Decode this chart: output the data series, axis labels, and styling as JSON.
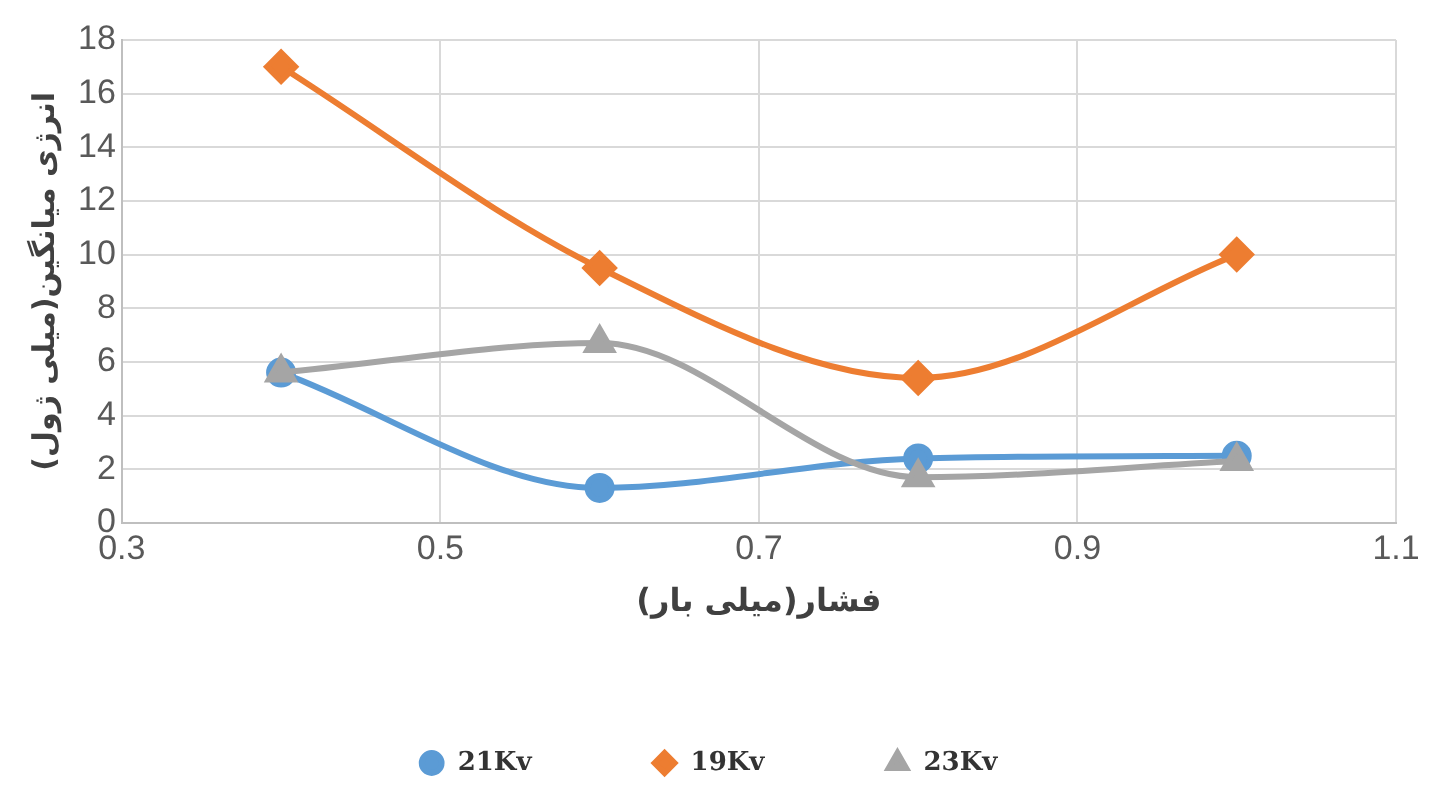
{
  "chart_data": {
    "type": "line",
    "xlabel": "فشار(میلی بار)",
    "ylabel": "انرژی میانگین(میلی ژول)",
    "x": [
      0.4,
      0.6,
      0.8,
      1.0
    ],
    "xlim": [
      0.3,
      1.1
    ],
    "xticks": [
      0.3,
      0.5,
      0.7,
      0.9,
      1.1
    ],
    "ylim": [
      0,
      18
    ],
    "yticks": [
      0,
      2,
      4,
      6,
      8,
      10,
      12,
      14,
      16,
      18
    ],
    "grid": true,
    "legend": "bottom",
    "line_style": "solid",
    "series": [
      {
        "name": "21Kv",
        "color": "#5b9bd5",
        "marker": "circle",
        "values": [
          5.6,
          1.3,
          2.4,
          2.5
        ]
      },
      {
        "name": "19Kv",
        "color": "#ed7d31",
        "marker": "diamond",
        "values": [
          17,
          9.5,
          5.4,
          10
        ]
      },
      {
        "name": "23Kv",
        "color": "#a5a5a5",
        "marker": "triangle",
        "values": [
          5.6,
          6.7,
          1.7,
          2.3
        ]
      }
    ]
  }
}
